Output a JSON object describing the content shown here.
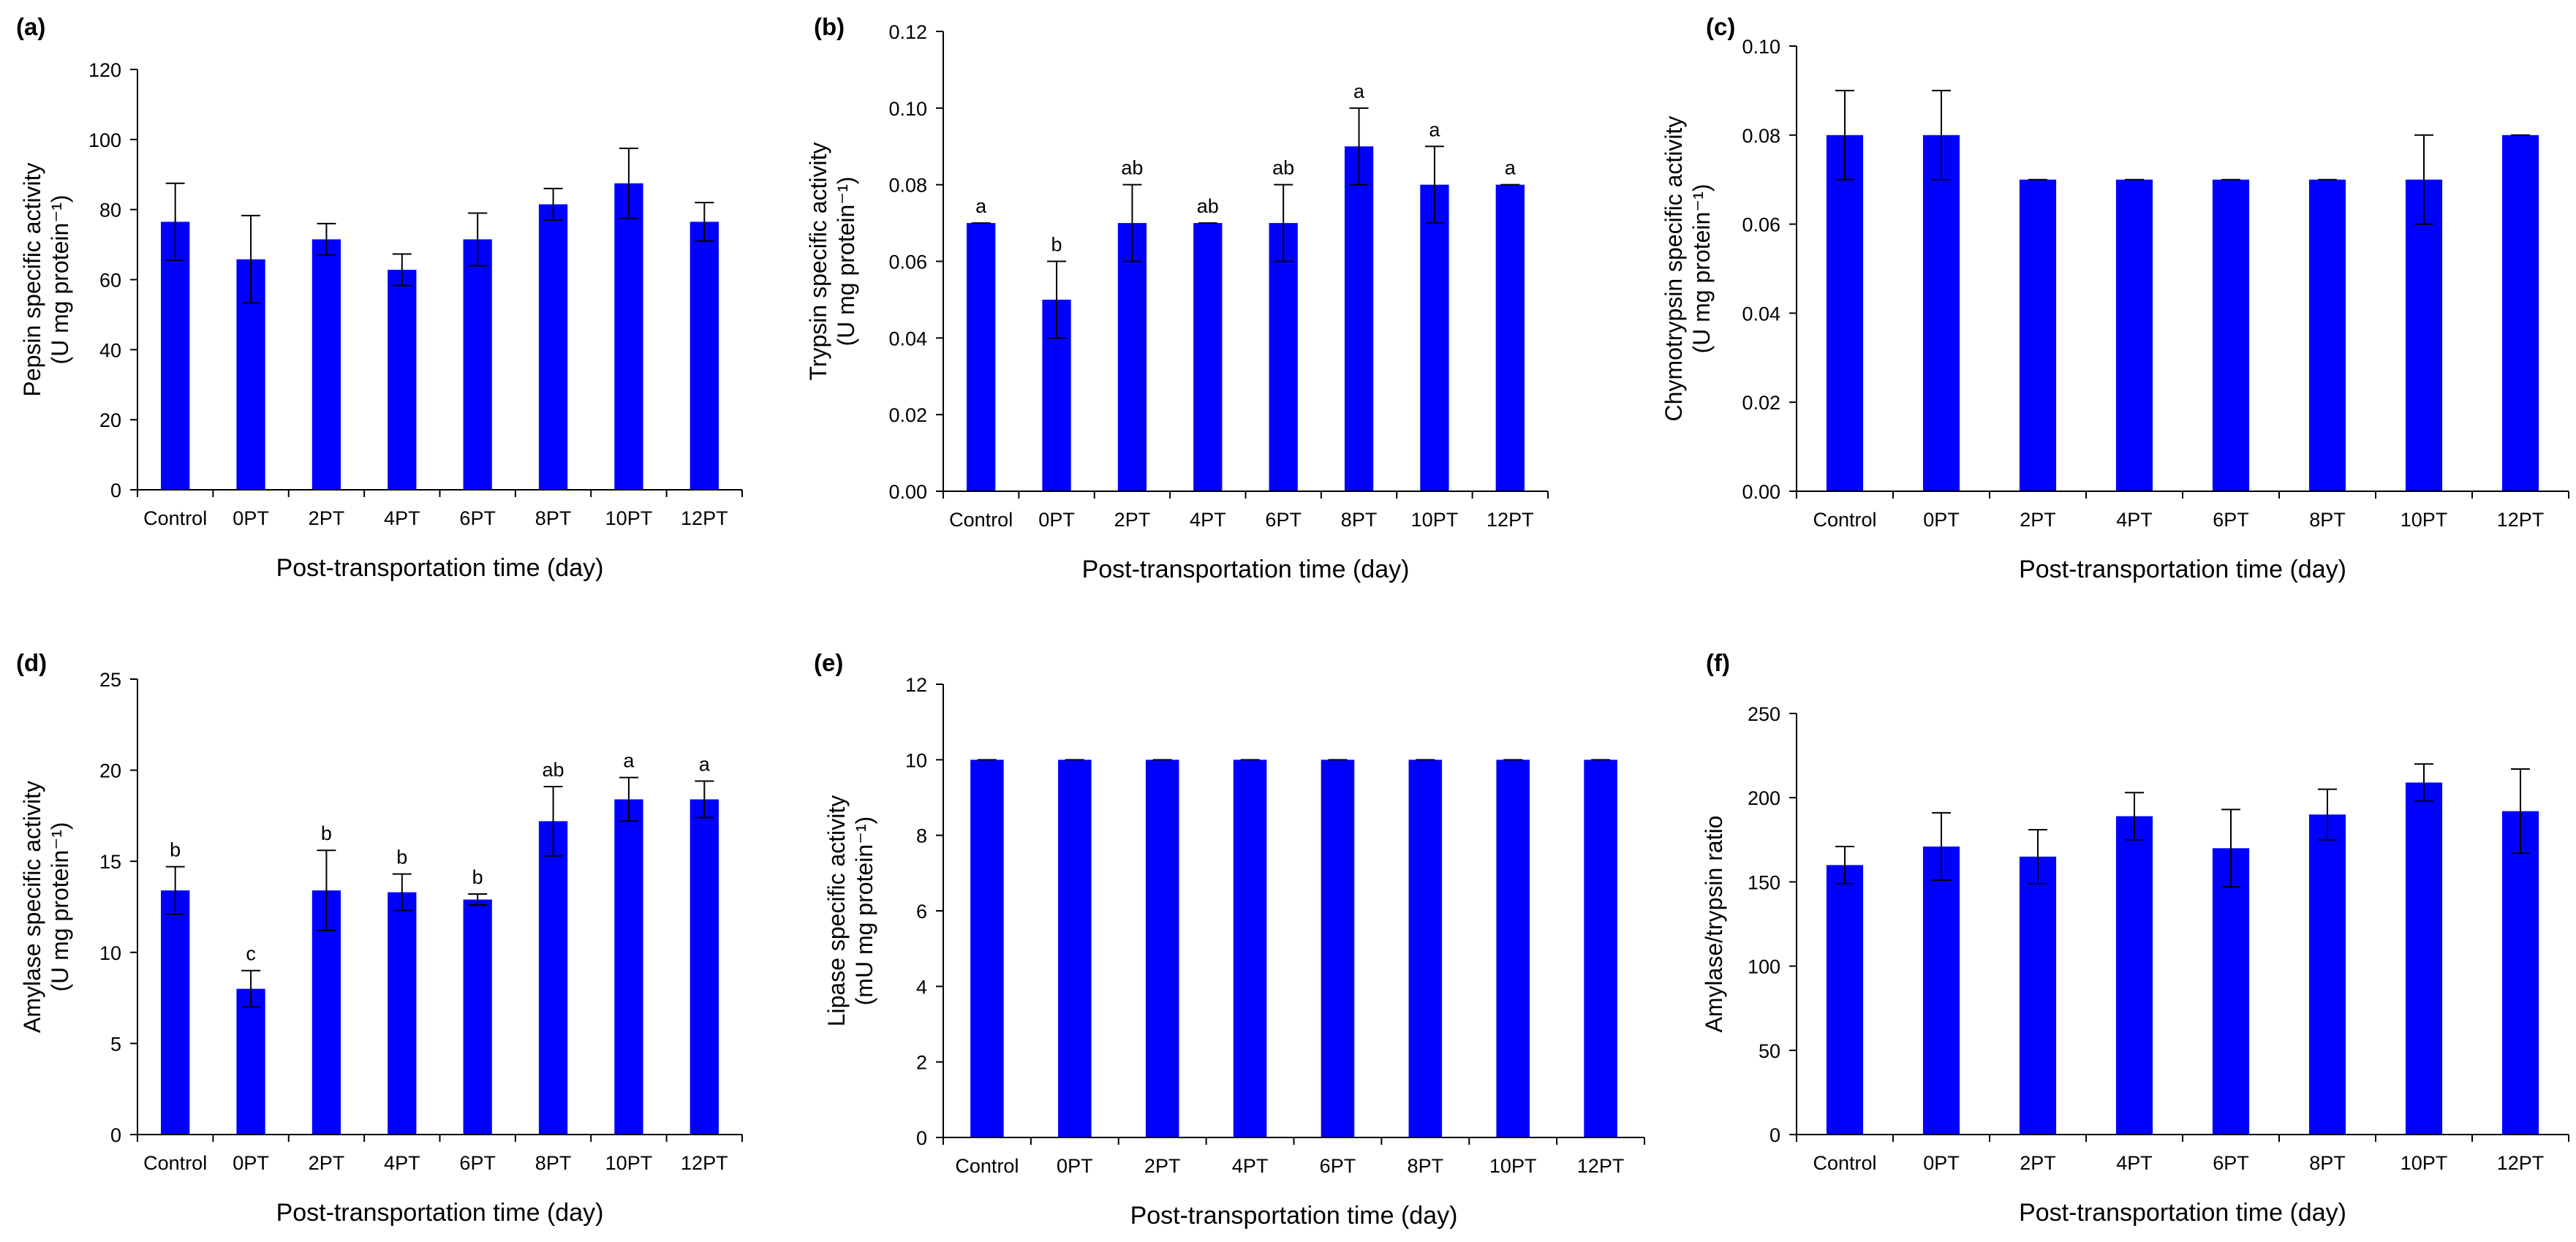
{
  "figure": {
    "bar_color": "#0000ff",
    "axis_color": "#000000"
  },
  "chart_data": [
    {
      "type": "bar",
      "panel_label": "(a)",
      "ylabel_lines": [
        "Pepsin specific activity",
        "(U mg protein⁻¹)"
      ],
      "xlabel": "Post-transportation time (day)",
      "categories": [
        "Control",
        "0PT",
        "2PT",
        "4PT",
        "6PT",
        "8PT",
        "10PT",
        "12PT"
      ],
      "values": [
        76.5,
        65.8,
        71.5,
        62.8,
        71.5,
        81.5,
        87.5,
        76.5
      ],
      "errors": [
        11,
        12.5,
        4.5,
        4.5,
        7.5,
        4.5,
        10,
        5.5
      ],
      "significance": [],
      "ylim": [
        0,
        120
      ],
      "yticks": [
        "0",
        "20",
        "40",
        "60",
        "80",
        "100",
        "120"
      ]
    },
    {
      "type": "bar",
      "panel_label": "(b)",
      "ylabel_lines": [
        "Trypsin specific activity",
        "(U mg protein⁻¹)"
      ],
      "xlabel": "Post-transportation time (day)",
      "categories": [
        "Control",
        "0PT",
        "2PT",
        "4PT",
        "6PT",
        "8PT",
        "10PT",
        "12PT"
      ],
      "values": [
        0.07,
        0.05,
        0.07,
        0.07,
        0.07,
        0.09,
        0.08,
        0.08
      ],
      "errors": [
        0,
        0.01,
        0.01,
        0,
        0.01,
        0.01,
        0.01,
        0
      ],
      "significance": [
        "a",
        "b",
        "ab",
        "ab",
        "ab",
        "a",
        "a",
        "a"
      ],
      "ylim": [
        0,
        0.12
      ],
      "yticks": [
        "0.00",
        "0.02",
        "0.04",
        "0.06",
        "0.08",
        "0.10",
        "0.12"
      ]
    },
    {
      "type": "bar",
      "panel_label": "(c)",
      "ylabel_lines": [
        "Chymotrypsin specific activity",
        "(U mg protein⁻¹)"
      ],
      "xlabel": "Post-transportation time (day)",
      "categories": [
        "Control",
        "0PT",
        "2PT",
        "4PT",
        "6PT",
        "8PT",
        "10PT",
        "12PT"
      ],
      "values": [
        0.08,
        0.08,
        0.07,
        0.07,
        0.07,
        0.07,
        0.07,
        0.08
      ],
      "errors": [
        0.01,
        0.01,
        0,
        0,
        0,
        0,
        0.01,
        0
      ],
      "significance": [],
      "ylim": [
        0,
        0.1
      ],
      "yticks": [
        "0.00",
        "0.02",
        "0.04",
        "0.06",
        "0.08",
        "0.10"
      ]
    },
    {
      "type": "bar",
      "panel_label": "(d)",
      "ylabel_lines": [
        "Amylase specific activity",
        "(U mg protein⁻¹)"
      ],
      "xlabel": "Post-transportation time (day)",
      "categories": [
        "Control",
        "0PT",
        "2PT",
        "4PT",
        "6PT",
        "8PT",
        "10PT",
        "12PT"
      ],
      "values": [
        13.4,
        8.0,
        13.4,
        13.3,
        12.9,
        17.2,
        18.4,
        18.4
      ],
      "errors": [
        1.3,
        1.0,
        2.2,
        1.0,
        0.3,
        1.9,
        1.2,
        1.0
      ],
      "significance": [
        "b",
        "c",
        "b",
        "b",
        "b",
        "ab",
        "a",
        "a"
      ],
      "ylim": [
        0,
        25
      ],
      "yticks": [
        "0",
        "5",
        "10",
        "15",
        "20",
        "25"
      ]
    },
    {
      "type": "bar",
      "panel_label": "(e)",
      "ylabel_lines": [
        "Lipase specific activity",
        "(mU mg protein⁻¹)"
      ],
      "xlabel": "Post-transportation time (day)",
      "categories": [
        "Control",
        "0PT",
        "2PT",
        "4PT",
        "6PT",
        "8PT",
        "10PT",
        "12PT"
      ],
      "values": [
        10,
        10,
        10,
        10,
        10,
        10,
        10,
        10
      ],
      "errors": [
        0,
        0,
        0,
        0,
        0,
        0,
        0,
        0
      ],
      "significance": [],
      "ylim": [
        0,
        12
      ],
      "yticks": [
        "0",
        "2",
        "4",
        "6",
        "8",
        "10",
        "12"
      ]
    },
    {
      "type": "bar",
      "panel_label": "(f)",
      "ylabel_lines": [
        "Amylase/trypsin ratio"
      ],
      "xlabel": "Post-transportation time (day)",
      "categories": [
        "Control",
        "0PT",
        "2PT",
        "4PT",
        "6PT",
        "8PT",
        "10PT",
        "12PT"
      ],
      "values": [
        160,
        171,
        165,
        189,
        170,
        190,
        209,
        192
      ],
      "errors": [
        11,
        20,
        16,
        14,
        23,
        15,
        11,
        25
      ],
      "significance": [],
      "ylim": [
        0,
        250
      ],
      "yticks": [
        "0",
        "50",
        "100",
        "150",
        "200",
        "250"
      ]
    }
  ]
}
